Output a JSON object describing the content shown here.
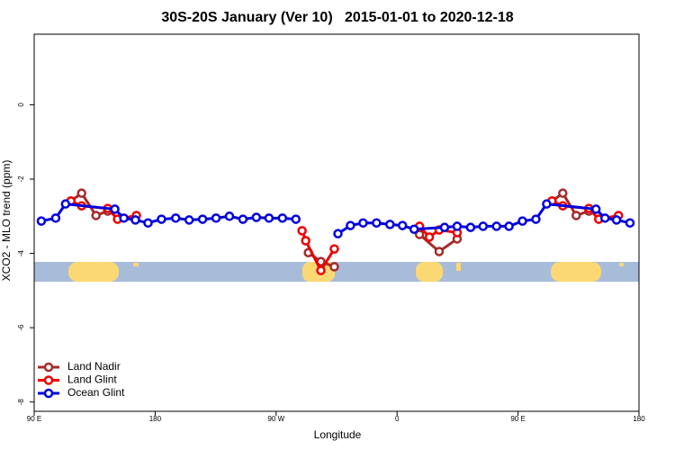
{
  "chart_data": {
    "type": "line",
    "title": "30S-20S January (Ver 10)   2015-01-01 to 2020-12-18",
    "x_label": "Longitude",
    "y_label": "XCO2 - MLO trend (ppm)",
    "xlim": [
      90,
      540
    ],
    "ylim": [
      -8.25,
      1.9
    ],
    "xticks": [
      {
        "value": 90,
        "label": "90 E"
      },
      180,
      {
        "value": 270,
        "label": "90 W"
      },
      {
        "value": 360,
        "label": "0"
      },
      {
        "value": 450,
        "label": "90 E"
      },
      {
        "value": 540,
        "label": "180"
      }
    ],
    "yticks": [
      -8,
      -6,
      -4,
      -2,
      0
    ],
    "legend": "bottom-left",
    "series": [
      {
        "name": "Land Nadir",
        "color": "#a52a2a",
        "x": [
          117.3,
          125.3,
          136,
          144.7,
          null,
          294,
          303.3,
          313.3,
          null,
          376.7,
          391.3,
          404.7,
          null,
          475.3,
          483.3,
          493.3,
          502.7
        ],
        "values": [
          -2.59,
          -2.38,
          -2.98,
          -2.86,
          null,
          -3.98,
          -4.22,
          -4.36,
          null,
          -3.49,
          -3.95,
          -3.61,
          null,
          -2.59,
          -2.38,
          -2.98,
          -2.86
        ]
      },
      {
        "name": "Land Glint",
        "color": "#ee0000",
        "x": [
          117.3,
          125.3,
          144.7,
          152,
          166,
          null,
          289.3,
          292,
          303.3,
          313.3,
          null,
          376.7,
          384,
          391.3,
          404.7,
          null,
          475.3,
          483.3,
          502.7,
          510,
          524.7
        ],
        "values": [
          -2.59,
          -2.72,
          -2.79,
          -3.08,
          -2.98,
          null,
          -3.39,
          -3.66,
          -4.46,
          -3.88,
          null,
          -3.27,
          -3.56,
          -3.37,
          -3.44,
          null,
          -2.59,
          -2.72,
          -2.79,
          -3.08,
          -2.98
        ]
      },
      {
        "name": "Ocean Glint",
        "color": "#0000dd",
        "x": [
          95.3,
          106,
          113.3,
          150,
          156.7,
          165.3,
          174.7,
          184.7,
          195.3,
          205.3,
          215.3,
          225.3,
          235.3,
          245.3,
          255.3,
          264.7,
          274.7,
          284.7,
          null,
          316,
          325.3,
          334.7,
          344.7,
          354.7,
          364,
          372.7,
          395.3,
          404.7,
          414.7,
          424,
          434,
          443.3,
          453.3,
          463.3,
          471.3,
          508,
          514.7,
          523.3,
          533.3
        ],
        "values": [
          -3.13,
          -3.05,
          -2.67,
          -2.81,
          -3.05,
          -3.1,
          -3.18,
          -3.08,
          -3.05,
          -3.1,
          -3.08,
          -3.05,
          -3.0,
          -3.08,
          -3.03,
          -3.05,
          -3.05,
          -3.08,
          null,
          -3.47,
          -3.25,
          -3.18,
          -3.18,
          -3.22,
          -3.25,
          -3.35,
          -3.3,
          -3.27,
          -3.3,
          -3.27,
          -3.27,
          -3.27,
          -3.13,
          -3.08,
          -2.67,
          -2.81,
          -3.05,
          -3.1,
          -3.18
        ]
      }
    ]
  }
}
